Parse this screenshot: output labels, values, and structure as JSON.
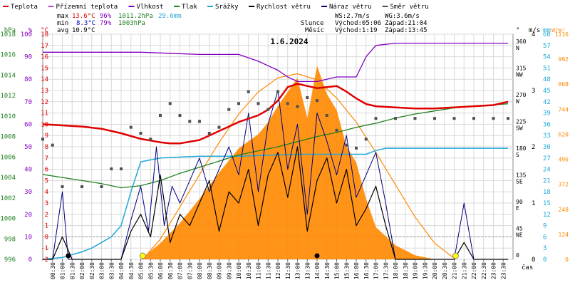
{
  "colors": {
    "temp": "#e00000",
    "dew": "#d040d0",
    "humidity": "#8000c0",
    "pressure": "#208020",
    "rain": "#20a8d8",
    "wind": "#000000",
    "gust": "#000080",
    "direction": "#505050",
    "sun": "#ff8800",
    "grid": "#d8d8d8"
  },
  "legend": [
    {
      "label": "Teplota",
      "color": "#e00000"
    },
    {
      "label": "Přízemní teplota",
      "color": "#d040d0"
    },
    {
      "label": "Vlhkost",
      "color": "#8000c0"
    },
    {
      "label": "Tlak",
      "color": "#208020"
    },
    {
      "label": "Srážky",
      "color": "#20a8d8"
    },
    {
      "label": "Rychlost větru",
      "color": "#000000"
    },
    {
      "label": "Náraz větru",
      "color": "#000080"
    },
    {
      "label": "Směr větru",
      "color": "#505050"
    }
  ],
  "stats": {
    "max_label": "max",
    "max_temp": "13.6°C",
    "max_hum": "96%",
    "max_press": "1011.2hPa",
    "max_rain": "29.6mm",
    "min_label": "min",
    "min_temp": "8.3°C",
    "min_hum": "79%",
    "min_press": "1003hPa",
    "avg_label": "avg",
    "avg_temp": "10.9°C"
  },
  "wind_info": {
    "ws": "WS:2.7m/s",
    "wg": "WG:3.6m/s",
    "sun_label": "Slunce",
    "sun_rise": "Východ:05:06",
    "sun_set": "Západ:21:04",
    "moon_label": "Měsíc",
    "moon_rise": "Východ:1:19",
    "moon_set": "Západ:13:45"
  },
  "chart_data": {
    "type": "line",
    "title": "1.6.2024",
    "xlabel": "čas",
    "x_ticks": [
      "00:30",
      "01:00",
      "01:30",
      "02:00",
      "02:30",
      "03:00",
      "03:30",
      "04:00",
      "04:30",
      "05:00",
      "05:30",
      "06:00",
      "06:30",
      "07:00",
      "07:30",
      "08:00",
      "08:30",
      "09:00",
      "09:30",
      "10:00",
      "10:30",
      "11:00",
      "11:30",
      "12:00",
      "12:30",
      "13:00",
      "13:30",
      "14:00",
      "14:30",
      "15:00",
      "15:30",
      "16:00",
      "16:30",
      "17:00",
      "17:30",
      "18:00",
      "18:30",
      "19:00",
      "19:30",
      "20:00",
      "20:30",
      "21:00",
      "21:30",
      "22:00",
      "22:30",
      "23:00",
      "23:30"
    ],
    "axes": {
      "pressure": {
        "label": "hPa",
        "range": [
          996,
          1018
        ],
        "ticks": [
          "1018",
          "1016",
          "1014",
          "1012",
          "1010",
          "1008",
          "1006",
          "1004",
          "1002",
          "1000",
          "998",
          "996"
        ]
      },
      "humidity": {
        "label": "%",
        "range": [
          0,
          100
        ],
        "ticks": [
          "100",
          "90",
          "80",
          "70",
          "60",
          "50",
          "40",
          "30",
          "20",
          "10",
          "0"
        ]
      },
      "temperature": {
        "label": "°C",
        "range": [
          -2,
          18
        ],
        "ticks": [
          "18",
          "17",
          "16",
          "15",
          "14",
          "13",
          "12",
          "11",
          "10",
          "9",
          "8",
          "7",
          "6",
          "5",
          "4",
          "3",
          "2",
          "1",
          "0",
          "-1",
          "-2"
        ]
      },
      "direction": {
        "label": "°",
        "ticks": [
          "360 N",
          "315 NW",
          "270 W",
          "225 SW",
          "180 S",
          "135 SE",
          "90 E",
          "45 NE",
          "0"
        ]
      },
      "wind": {
        "label": "m/s",
        "range": [
          0,
          4
        ],
        "ticks": [
          "4",
          "3",
          "2",
          "1",
          "0"
        ]
      },
      "rain": {
        "label": "mm",
        "range": [
          0,
          60
        ],
        "ticks": [
          "60",
          "57",
          "54",
          "51",
          "48",
          "45",
          "42",
          "39",
          "36",
          "33",
          "30",
          "27",
          "24",
          "21",
          "18",
          "15",
          "12",
          "9",
          "6",
          "3",
          "0"
        ]
      },
      "solar": {
        "label": "W/m²",
        "range": [
          0,
          1116
        ],
        "ticks": [
          "1116",
          "992",
          "868",
          "744",
          "620",
          "496",
          "372",
          "248",
          "124",
          "0"
        ]
      }
    },
    "series": [
      {
        "name": "Teplota",
        "unit": "°C",
        "points": [
          [
            0,
            10.0
          ],
          [
            1,
            9.9
          ],
          [
            2,
            9.8
          ],
          [
            3,
            9.6
          ],
          [
            4,
            9.2
          ],
          [
            5,
            8.7
          ],
          [
            6,
            8.4
          ],
          [
            6.5,
            8.3
          ],
          [
            7,
            8.3
          ],
          [
            8,
            8.6
          ],
          [
            8.5,
            9.0
          ],
          [
            9,
            9.4
          ],
          [
            9.5,
            9.8
          ],
          [
            10,
            10.2
          ],
          [
            10.5,
            10.5
          ],
          [
            11,
            10.8
          ],
          [
            11.5,
            11.3
          ],
          [
            12,
            12.1
          ],
          [
            12.5,
            13.3
          ],
          [
            13,
            13.6
          ],
          [
            13.5,
            13.4
          ],
          [
            14,
            13.2
          ],
          [
            14.5,
            13.3
          ],
          [
            15,
            13.4
          ],
          [
            15.5,
            12.9
          ],
          [
            16,
            12.3
          ],
          [
            16.5,
            11.8
          ],
          [
            17,
            11.6
          ],
          [
            18,
            11.5
          ],
          [
            19,
            11.4
          ],
          [
            20,
            11.4
          ],
          [
            21,
            11.5
          ],
          [
            22,
            11.6
          ],
          [
            23,
            11.7
          ],
          [
            23.75,
            12.0
          ]
        ]
      },
      {
        "name": "Vlhkost",
        "unit": "%",
        "points": [
          [
            0,
            92
          ],
          [
            5,
            92
          ],
          [
            8,
            91
          ],
          [
            10,
            91
          ],
          [
            11,
            88
          ],
          [
            12,
            84
          ],
          [
            12.5,
            81
          ],
          [
            13,
            79
          ],
          [
            14,
            79
          ],
          [
            15,
            81
          ],
          [
            16,
            81
          ],
          [
            16.5,
            90
          ],
          [
            17,
            95
          ],
          [
            18,
            96
          ],
          [
            20,
            96
          ],
          [
            22,
            96
          ],
          [
            23.75,
            96
          ]
        ]
      },
      {
        "name": "Tlak",
        "unit": "hPa",
        "points": [
          [
            0,
            1004.3
          ],
          [
            1,
            1004.0
          ],
          [
            2,
            1003.7
          ],
          [
            3,
            1003.4
          ],
          [
            4,
            1003.0
          ],
          [
            5,
            1003.2
          ],
          [
            6,
            1003.7
          ],
          [
            7,
            1004.4
          ],
          [
            8,
            1005.0
          ],
          [
            9,
            1005.6
          ],
          [
            10,
            1006.2
          ],
          [
            11,
            1006.6
          ],
          [
            12,
            1007.0
          ],
          [
            13,
            1007.5
          ],
          [
            14,
            1008.0
          ],
          [
            15,
            1008.4
          ],
          [
            16,
            1008.9
          ],
          [
            17,
            1009.3
          ],
          [
            18,
            1009.8
          ],
          [
            19,
            1010.2
          ],
          [
            20,
            1010.5
          ],
          [
            21,
            1010.8
          ],
          [
            22,
            1011.0
          ],
          [
            23,
            1011.1
          ],
          [
            23.75,
            1011.2
          ]
        ]
      },
      {
        "name": "Srážky",
        "unit": "mm",
        "points": [
          [
            0,
            0
          ],
          [
            1,
            0.5
          ],
          [
            2,
            2
          ],
          [
            2.5,
            3
          ],
          [
            3,
            4.5
          ],
          [
            3.5,
            6
          ],
          [
            4,
            9
          ],
          [
            4.5,
            18
          ],
          [
            5,
            26
          ],
          [
            5.5,
            26.5
          ],
          [
            6,
            27
          ],
          [
            8,
            27.5
          ],
          [
            10,
            27.5
          ],
          [
            13,
            28
          ],
          [
            15,
            28
          ],
          [
            16.5,
            28
          ],
          [
            17,
            29
          ],
          [
            17.5,
            29.6
          ],
          [
            23.75,
            29.6
          ]
        ]
      },
      {
        "name": "Rychlost větru",
        "unit": "m/s",
        "points": [
          [
            0,
            0
          ],
          [
            0.5,
            0
          ],
          [
            1,
            0.4
          ],
          [
            1.5,
            0
          ],
          [
            4,
            0
          ],
          [
            4.5,
            0.5
          ],
          [
            5,
            0.8
          ],
          [
            5.5,
            0.4
          ],
          [
            6,
            1.5
          ],
          [
            6.5,
            0.3
          ],
          [
            7,
            0.8
          ],
          [
            7.5,
            0.6
          ],
          [
            8,
            1
          ],
          [
            8.5,
            1.4
          ],
          [
            9,
            0.5
          ],
          [
            9.5,
            1.2
          ],
          [
            10,
            1.0
          ],
          [
            10.5,
            1.6
          ],
          [
            11,
            0.6
          ],
          [
            11.5,
            1.5
          ],
          [
            12,
            1.9
          ],
          [
            12.5,
            1.1
          ],
          [
            13,
            2.0
          ],
          [
            13.5,
            0.5
          ],
          [
            14,
            1.4
          ],
          [
            14.5,
            1.8
          ],
          [
            15,
            1.0
          ],
          [
            15.5,
            1.6
          ],
          [
            16,
            0.6
          ],
          [
            16.5,
            0.9
          ],
          [
            17,
            1.3
          ],
          [
            17.5,
            0.6
          ],
          [
            18,
            0
          ],
          [
            20,
            0
          ],
          [
            21,
            0
          ],
          [
            21.5,
            0.3
          ],
          [
            22,
            0
          ],
          [
            23.75,
            0
          ]
        ]
      },
      {
        "name": "Náraz větru",
        "unit": "m/s",
        "points": [
          [
            0,
            0
          ],
          [
            0.5,
            0
          ],
          [
            1,
            1.2
          ],
          [
            1.3,
            0
          ],
          [
            4,
            0
          ],
          [
            4.5,
            0.7
          ],
          [
            5,
            1.3
          ],
          [
            5.4,
            0.5
          ],
          [
            5.8,
            2.0
          ],
          [
            6.2,
            0.6
          ],
          [
            6.6,
            1.3
          ],
          [
            7,
            1.0
          ],
          [
            7.5,
            1.4
          ],
          [
            8,
            1.8
          ],
          [
            8.5,
            1.2
          ],
          [
            9,
            1.6
          ],
          [
            9.5,
            2.0
          ],
          [
            10,
            1.5
          ],
          [
            10.5,
            2.6
          ],
          [
            11,
            1.2
          ],
          [
            11.5,
            2.4
          ],
          [
            12,
            3.0
          ],
          [
            12.5,
            1.6
          ],
          [
            13,
            2.4
          ],
          [
            13.5,
            0.8
          ],
          [
            14,
            2.6
          ],
          [
            14.5,
            2.1
          ],
          [
            15,
            1.5
          ],
          [
            15.5,
            2.2
          ],
          [
            16,
            1.1
          ],
          [
            16.5,
            1.5
          ],
          [
            17,
            1.9
          ],
          [
            17.5,
            1.0
          ],
          [
            18,
            0
          ],
          [
            20,
            0
          ],
          [
            21,
            0
          ],
          [
            21.5,
            1.0
          ],
          [
            22,
            0
          ],
          [
            23.75,
            0
          ]
        ]
      },
      {
        "name": "Směr větru",
        "unit": "°",
        "points": [
          [
            0,
            200
          ],
          [
            0.5,
            190
          ],
          [
            1,
            120
          ],
          [
            2,
            120
          ],
          [
            3,
            120
          ],
          [
            3.5,
            150
          ],
          [
            4,
            150
          ],
          [
            4.5,
            220
          ],
          [
            5,
            210
          ],
          [
            5.5,
            200
          ],
          [
            6,
            240
          ],
          [
            6.5,
            260
          ],
          [
            7,
            240
          ],
          [
            7.5,
            230
          ],
          [
            8,
            230
          ],
          [
            8.5,
            210
          ],
          [
            9,
            220
          ],
          [
            9.5,
            250
          ],
          [
            10,
            260
          ],
          [
            10.5,
            280
          ],
          [
            11,
            260
          ],
          [
            11.5,
            250
          ],
          [
            12,
            280
          ],
          [
            12.5,
            260
          ],
          [
            13,
            255
          ],
          [
            13.5,
            270
          ],
          [
            14,
            265
          ],
          [
            14.5,
            240
          ],
          [
            15,
            215
          ],
          [
            15.5,
            190
          ],
          [
            16,
            185
          ],
          [
            16.5,
            200
          ],
          [
            17,
            235
          ],
          [
            18,
            235
          ],
          [
            19,
            235
          ],
          [
            20,
            235
          ],
          [
            21,
            235
          ],
          [
            22,
            235
          ],
          [
            23,
            235
          ],
          [
            23.75,
            235
          ]
        ]
      },
      {
        "name": "Sluneční svit",
        "unit": "W/m²",
        "points": [
          [
            5,
            0
          ],
          [
            6,
            80
          ],
          [
            7,
            180
          ],
          [
            8,
            300
          ],
          [
            9,
            430
          ],
          [
            10,
            550
          ],
          [
            11,
            620
          ],
          [
            11.5,
            680
          ],
          [
            12,
            760
          ],
          [
            12.5,
            830
          ],
          [
            13,
            900
          ],
          [
            13.5,
            700
          ],
          [
            14,
            960
          ],
          [
            14.5,
            820
          ],
          [
            15,
            740
          ],
          [
            15.5,
            560
          ],
          [
            16,
            480
          ],
          [
            16.5,
            300
          ],
          [
            17,
            160
          ],
          [
            18,
            70
          ],
          [
            19,
            20
          ],
          [
            20,
            0
          ],
          [
            23.75,
            0
          ]
        ]
      },
      {
        "name": "Dráha slunce",
        "unit": "W/m²",
        "points": [
          [
            5.1,
            0
          ],
          [
            6,
            100
          ],
          [
            7,
            260
          ],
          [
            8,
            420
          ],
          [
            9,
            580
          ],
          [
            10,
            720
          ],
          [
            11,
            830
          ],
          [
            12,
            900
          ],
          [
            13,
            920
          ],
          [
            14,
            890
          ],
          [
            15,
            800
          ],
          [
            16,
            680
          ],
          [
            17,
            530
          ],
          [
            18,
            370
          ],
          [
            19,
            210
          ],
          [
            20,
            80
          ],
          [
            21.07,
            0
          ]
        ]
      }
    ]
  }
}
